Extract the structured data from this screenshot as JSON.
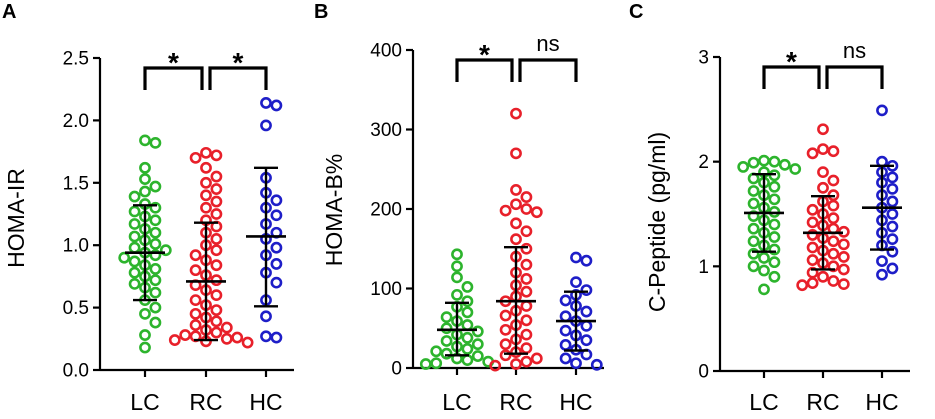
{
  "chart_data": [
    {
      "type": "scatter",
      "panel": "A",
      "ylabel": "HOMA-IR",
      "xlabel": "",
      "ylim": [
        0,
        2.5
      ],
      "yticks": [
        0.0,
        0.5,
        1.0,
        1.5,
        2.0,
        2.5
      ],
      "ytick_labels": [
        "0.0",
        "0.5",
        "1.0",
        "1.5",
        "2.0",
        "2.5"
      ],
      "categories": [
        "LC",
        "RC",
        "HC"
      ],
      "colors": [
        "#2db42d",
        "#e8202a",
        "#1e1ec8"
      ],
      "series": [
        {
          "name": "LC",
          "mean": 0.94,
          "sd_low": 0.56,
          "sd_high": 1.32,
          "values": [
            1.84,
            1.82,
            1.62,
            1.53,
            1.47,
            1.43,
            1.39,
            1.33,
            1.3,
            1.27,
            1.23,
            1.2,
            1.17,
            1.13,
            1.1,
            1.07,
            1.04,
            1.01,
            0.98,
            0.96,
            0.94,
            0.92,
            0.9,
            0.87,
            0.84,
            0.81,
            0.78,
            0.75,
            0.72,
            0.69,
            0.66,
            0.62,
            0.56,
            0.5,
            0.45,
            0.38,
            0.28,
            0.18
          ]
        },
        {
          "name": "RC",
          "mean": 0.71,
          "sd_low": 0.24,
          "sd_high": 1.18,
          "values": [
            1.74,
            1.72,
            1.7,
            1.62,
            1.55,
            1.5,
            1.45,
            1.4,
            1.35,
            1.3,
            1.25,
            1.2,
            1.15,
            1.1,
            1.05,
            1.0,
            0.96,
            0.92,
            0.88,
            0.84,
            0.8,
            0.76,
            0.72,
            0.68,
            0.64,
            0.6,
            0.56,
            0.52,
            0.48,
            0.45,
            0.42,
            0.39,
            0.36,
            0.34,
            0.32,
            0.3,
            0.28,
            0.27,
            0.26,
            0.25,
            0.24,
            0.23,
            0.22
          ]
        },
        {
          "name": "HC",
          "mean": 1.07,
          "sd_low": 0.51,
          "sd_high": 1.62,
          "values": [
            2.14,
            2.12,
            1.96,
            1.54,
            1.42,
            1.36,
            1.3,
            1.24,
            1.17,
            1.1,
            1.05,
            0.98,
            0.92,
            0.85,
            0.78,
            0.7,
            0.56,
            0.43,
            0.27,
            0.26
          ]
        }
      ],
      "comparisons": [
        {
          "from": "LC",
          "to": "RC",
          "label": "*"
        },
        {
          "from": "RC",
          "to": "HC",
          "label": "*"
        }
      ]
    },
    {
      "type": "scatter",
      "panel": "B",
      "ylabel": "HOMA-B%",
      "xlabel": "",
      "ylim": [
        0,
        400
      ],
      "yticks": [
        0,
        100,
        200,
        300,
        400
      ],
      "ytick_labels": [
        "0",
        "100",
        "200",
        "300",
        "400"
      ],
      "categories": [
        "LC",
        "RC",
        "HC"
      ],
      "colors": [
        "#2db42d",
        "#e8202a",
        "#1e1ec8"
      ],
      "series": [
        {
          "name": "LC",
          "mean": 48,
          "sd_low": 16,
          "sd_high": 82,
          "values": [
            143,
            128,
            114,
            102,
            92,
            84,
            77,
            70,
            64,
            59,
            54,
            50,
            46,
            42,
            38,
            34,
            30,
            27,
            24,
            21,
            18,
            15,
            12,
            10,
            8,
            6,
            5
          ]
        },
        {
          "name": "RC",
          "mean": 84,
          "sd_low": 18,
          "sd_high": 152,
          "values": [
            320,
            270,
            224,
            215,
            206,
            200,
            198,
            196,
            182,
            172,
            162,
            150,
            140,
            130,
            120,
            112,
            104,
            96,
            90,
            84,
            78,
            72,
            66,
            60,
            54,
            48,
            42,
            36,
            30,
            25,
            20,
            16,
            12,
            8,
            5,
            3
          ]
        },
        {
          "name": "HC",
          "mean": 59,
          "sd_low": 22,
          "sd_high": 96,
          "values": [
            139,
            135,
            108,
            98,
            92,
            85,
            78,
            71,
            65,
            59,
            53,
            47,
            41,
            35,
            29,
            23,
            17,
            12,
            6,
            4
          ]
        }
      ],
      "comparisons": [
        {
          "from": "LC",
          "to": "RC",
          "label": "*"
        },
        {
          "from": "RC",
          "to": "HC",
          "label": "ns"
        }
      ]
    },
    {
      "type": "scatter",
      "panel": "C",
      "ylabel": "C-Peptide (pg/ml)",
      "xlabel": "",
      "ylim": [
        0,
        3
      ],
      "yticks": [
        0,
        1,
        2,
        3
      ],
      "ytick_labels": [
        "0",
        "1",
        "2",
        "3"
      ],
      "categories": [
        "LC",
        "RC",
        "HC"
      ],
      "colors": [
        "#2db42d",
        "#e8202a",
        "#1e1ec8"
      ],
      "series": [
        {
          "name": "LC",
          "mean": 1.51,
          "sd_low": 1.14,
          "sd_high": 1.88,
          "values": [
            2.01,
            2.0,
            1.99,
            1.97,
            1.95,
            1.93,
            1.9,
            1.87,
            1.84,
            1.8,
            1.76,
            1.72,
            1.68,
            1.64,
            1.6,
            1.56,
            1.52,
            1.48,
            1.44,
            1.4,
            1.36,
            1.32,
            1.28,
            1.24,
            1.2,
            1.16,
            1.12,
            1.08,
            1.04,
            1.0,
            0.96,
            0.9,
            0.78
          ]
        },
        {
          "name": "RC",
          "mean": 1.32,
          "sd_low": 0.97,
          "sd_high": 1.67,
          "values": [
            2.31,
            2.12,
            2.1,
            2.08,
            1.9,
            1.82,
            1.75,
            1.68,
            1.62,
            1.58,
            1.54,
            1.5,
            1.46,
            1.42,
            1.39,
            1.36,
            1.33,
            1.3,
            1.27,
            1.24,
            1.21,
            1.18,
            1.15,
            1.12,
            1.09,
            1.06,
            1.03,
            1.0,
            0.97,
            0.94,
            0.9,
            0.86,
            0.84,
            0.83,
            0.82
          ]
        },
        {
          "name": "HC",
          "mean": 1.56,
          "sd_low": 1.16,
          "sd_high": 1.96,
          "values": [
            2.49,
            2.0,
            1.96,
            1.9,
            1.85,
            1.8,
            1.74,
            1.68,
            1.62,
            1.56,
            1.5,
            1.44,
            1.38,
            1.32,
            1.26,
            1.2,
            1.14,
            1.05,
            0.98,
            0.92
          ]
        }
      ],
      "comparisons": [
        {
          "from": "LC",
          "to": "RC",
          "label": "*"
        },
        {
          "from": "RC",
          "to": "HC",
          "label": "ns"
        }
      ]
    }
  ]
}
